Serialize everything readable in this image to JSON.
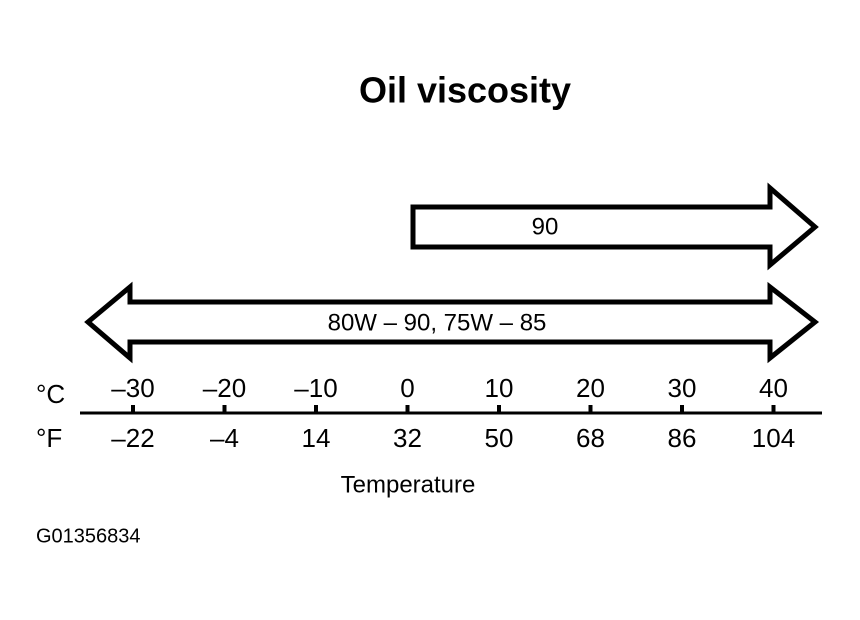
{
  "title": "Oil viscosity",
  "arrows": [
    {
      "label": "90"
    },
    {
      "label": "80W – 90, 75W – 85"
    }
  ],
  "scale": {
    "celsius_unit": "°C",
    "fahrenheit_unit": "°F",
    "celsius_ticks": [
      "–30",
      "–20",
      "–10",
      "0",
      "10",
      "20",
      "30",
      "40"
    ],
    "fahrenheit_ticks": [
      "–22",
      "–4",
      "14",
      "32",
      "50",
      "68",
      "86",
      "104"
    ],
    "label": "Temperature"
  },
  "figure_id": "G01356834"
}
